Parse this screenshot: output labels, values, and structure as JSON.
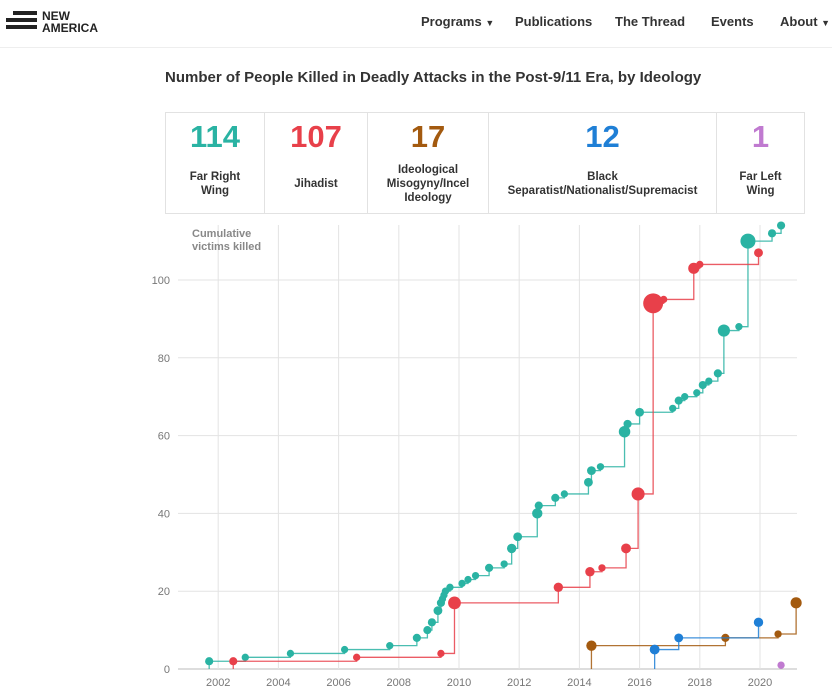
{
  "header": {
    "logo": "NEW AMERICA",
    "nav": [
      "Programs",
      "Publications",
      "The Thread",
      "Events",
      "About"
    ]
  },
  "title": "Number of People Killed in Deadly Attacks in the Post-9/11 Era, by Ideology",
  "stats": [
    {
      "value": "114",
      "label": "Far Right Wing",
      "color": "#2ab3a3"
    },
    {
      "value": "107",
      "label": "Jihadist",
      "color": "#e8404a"
    },
    {
      "value": "17",
      "label": "Ideological Misogyny/Incel Ideology",
      "color": "#a35a0f"
    },
    {
      "value": "12",
      "label": "Black Separatist/Nationalist/Supremacist",
      "color": "#1f7fd6"
    },
    {
      "value": "1",
      "label": "Far Left Wing",
      "color": "#c07ad0"
    }
  ],
  "chart_data": {
    "type": "line",
    "ylabel": "Cumulative victims killed",
    "xlim": [
      2001.2,
      2021.3
    ],
    "ylim": [
      0,
      114
    ],
    "xticks": [
      2002,
      2004,
      2006,
      2008,
      2010,
      2012,
      2014,
      2016,
      2018,
      2020
    ],
    "yticks": [
      0,
      20,
      40,
      60,
      80,
      100
    ],
    "grid": true,
    "series": [
      {
        "name": "Far Right Wing",
        "color": "#2ab3a3",
        "points": [
          [
            2001.7,
            2
          ],
          [
            2002.9,
            3
          ],
          [
            2004.4,
            4
          ],
          [
            2006.2,
            5
          ],
          [
            2007.7,
            6
          ],
          [
            2008.6,
            8
          ],
          [
            2008.95,
            10
          ],
          [
            2009.1,
            12
          ],
          [
            2009.3,
            15
          ],
          [
            2009.4,
            17
          ],
          [
            2009.45,
            18
          ],
          [
            2009.5,
            19
          ],
          [
            2009.55,
            20
          ],
          [
            2009.7,
            21
          ],
          [
            2010.1,
            22
          ],
          [
            2010.3,
            23
          ],
          [
            2010.55,
            24
          ],
          [
            2011.0,
            26
          ],
          [
            2011.5,
            27
          ],
          [
            2011.75,
            31
          ],
          [
            2011.95,
            34
          ],
          [
            2012.6,
            40
          ],
          [
            2012.65,
            42
          ],
          [
            2013.2,
            44
          ],
          [
            2013.5,
            45
          ],
          [
            2014.3,
            48
          ],
          [
            2014.4,
            51
          ],
          [
            2014.7,
            52
          ],
          [
            2015.5,
            61
          ],
          [
            2015.6,
            63
          ],
          [
            2016.0,
            66
          ],
          [
            2017.1,
            67
          ],
          [
            2017.3,
            69
          ],
          [
            2017.5,
            70
          ],
          [
            2017.9,
            71
          ],
          [
            2018.1,
            73
          ],
          [
            2018.3,
            74
          ],
          [
            2018.6,
            76
          ],
          [
            2018.8,
            87
          ],
          [
            2019.3,
            88
          ],
          [
            2019.6,
            110
          ],
          [
            2020.4,
            112
          ],
          [
            2020.7,
            114
          ]
        ]
      },
      {
        "name": "Jihadist",
        "color": "#e8404a",
        "points": [
          [
            2002.5,
            2
          ],
          [
            2006.6,
            3
          ],
          [
            2009.4,
            4
          ],
          [
            2009.85,
            17
          ],
          [
            2013.3,
            21
          ],
          [
            2014.35,
            25
          ],
          [
            2014.75,
            26
          ],
          [
            2015.55,
            31
          ],
          [
            2015.95,
            45
          ],
          [
            2016.45,
            94
          ],
          [
            2016.8,
            95
          ],
          [
            2017.8,
            103
          ],
          [
            2018.0,
            104
          ],
          [
            2019.95,
            107
          ]
        ]
      },
      {
        "name": "Ideological Misogyny/Incel Ideology",
        "color": "#a35a0f",
        "points": [
          [
            2014.4,
            6
          ],
          [
            2018.85,
            8
          ],
          [
            2020.6,
            9
          ],
          [
            2021.2,
            17
          ]
        ]
      },
      {
        "name": "Black Separatist/Nationalist/Supremacist",
        "color": "#1f7fd6",
        "points": [
          [
            2016.5,
            5
          ],
          [
            2017.3,
            8
          ],
          [
            2019.95,
            12
          ]
        ]
      },
      {
        "name": "Far Left Wing",
        "color": "#c07ad0",
        "points": [
          [
            2020.7,
            1
          ]
        ]
      }
    ]
  }
}
